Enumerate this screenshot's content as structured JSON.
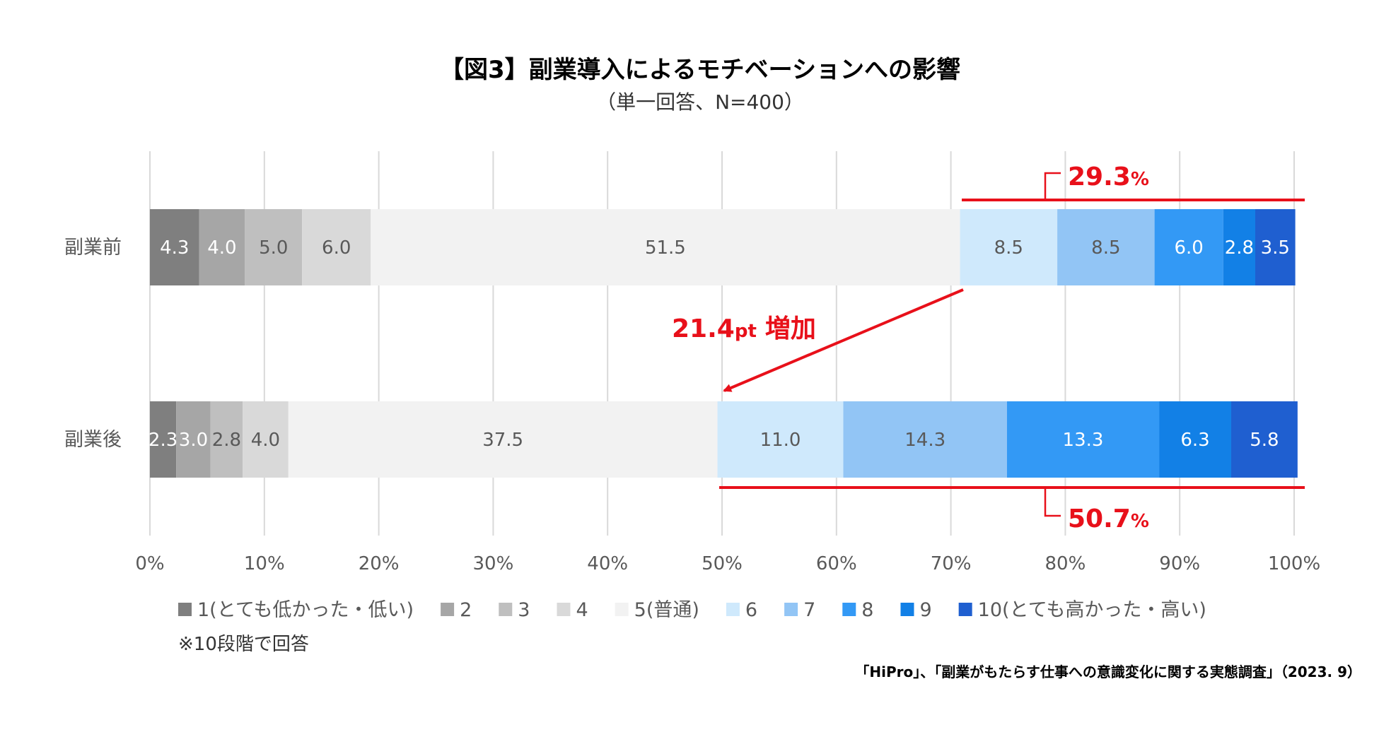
{
  "chart_data": {
    "type": "bar",
    "orientation": "horizontal",
    "stacked": true,
    "title": "【図3】副業導入によるモチベーションへの影響",
    "subtitle": "（単一回答、N=400）",
    "categories": [
      "副業前",
      "副業後"
    ],
    "series": [
      {
        "name": "1(とても低かった・低い)",
        "color": "#7f7f7f",
        "label_color": "#ffffff",
        "values": [
          4.3,
          2.3
        ]
      },
      {
        "name": "2",
        "color": "#a6a6a6",
        "label_color": "#ffffff",
        "values": [
          4.0,
          3.0
        ]
      },
      {
        "name": "3",
        "color": "#bfbfbf",
        "label_color": "#595959",
        "values": [
          5.0,
          2.8
        ]
      },
      {
        "name": "4",
        "color": "#d9d9d9",
        "label_color": "#595959",
        "values": [
          6.0,
          4.0
        ]
      },
      {
        "name": "5(普通)",
        "color": "#f2f2f2",
        "label_color": "#595959",
        "values": [
          51.5,
          37.5
        ]
      },
      {
        "name": "6",
        "color": "#cfe9fc",
        "label_color": "#595959",
        "values": [
          8.5,
          11.0
        ]
      },
      {
        "name": "7",
        "color": "#92c5f5",
        "label_color": "#595959",
        "values": [
          8.5,
          14.3
        ]
      },
      {
        "name": "8",
        "color": "#3399f5",
        "label_color": "#ffffff",
        "values": [
          6.0,
          13.3
        ]
      },
      {
        "name": "9",
        "color": "#1280e6",
        "label_color": "#ffffff",
        "values": [
          2.8,
          6.3
        ]
      },
      {
        "name": "10(とても高かった・高い)",
        "color": "#1f5fd0",
        "label_color": "#ffffff",
        "values": [
          3.5,
          5.8
        ]
      }
    ],
    "xlim": [
      0,
      100
    ],
    "x_ticks": [
      "0%",
      "10%",
      "20%",
      "30%",
      "40%",
      "50%",
      "60%",
      "70%",
      "80%",
      "90%",
      "100%"
    ],
    "grid": true,
    "legend_position": "bottom",
    "annotations": {
      "before_total": "29.3",
      "after_total": "50.7",
      "percent_unit": "%",
      "increase_value": "21.4",
      "increase_unit": "pt",
      "increase_word": "増加",
      "accent_color": "#e8101a"
    }
  },
  "note": "※10段階で回答",
  "source": "「HiPro」、「副業がもたらす仕事への意識変化に関する実態調査」（2023. 9）"
}
